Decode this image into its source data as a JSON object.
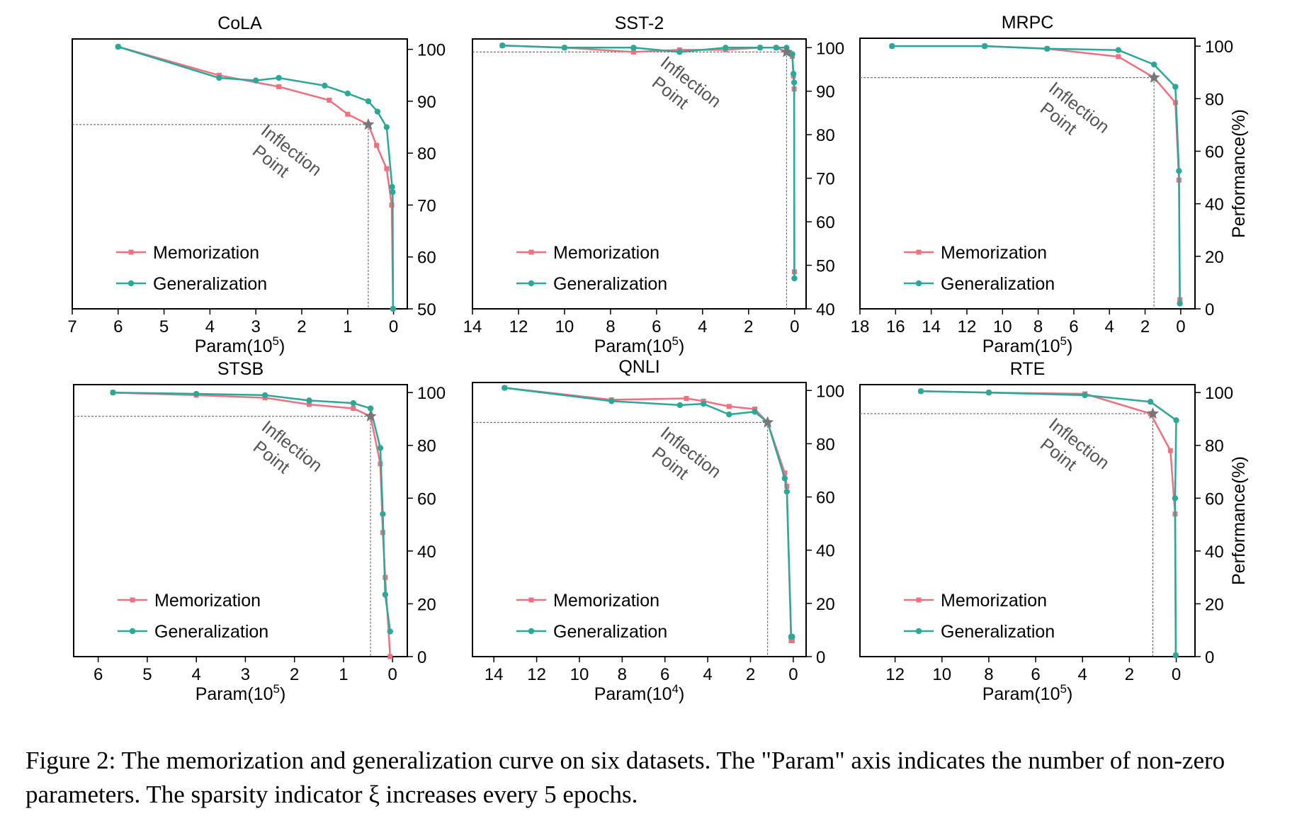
{
  "chart_data": [
    {
      "type": "line",
      "title": "CoLA",
      "xlabel": "Param(10",
      "xlabel_exp": "5",
      "ylabel": "",
      "xlim": [
        7,
        -0.3
      ],
      "ylim": [
        50,
        102
      ],
      "xticks": [
        7,
        6,
        5,
        4,
        3,
        2,
        1,
        0
      ],
      "yticks": [
        50,
        60,
        70,
        80,
        90,
        100
      ],
      "inflection": {
        "x": 0.55,
        "y": 85.5,
        "label": [
          "Inflection",
          "Point"
        ]
      },
      "series": [
        {
          "name": "Memorization",
          "color": "#f07080",
          "marker": "square",
          "x": [
            6.0,
            3.8,
            2.5,
            1.4,
            1.0,
            0.55,
            0.37,
            0.15,
            0.04,
            0.01
          ],
          "y": [
            100.5,
            95.0,
            92.8,
            90.2,
            87.5,
            85.5,
            81.5,
            77.0,
            70.0,
            50.0
          ]
        },
        {
          "name": "Generalization",
          "color": "#2ba898",
          "marker": "circle",
          "x": [
            6.0,
            3.8,
            3.0,
            2.5,
            1.5,
            1.0,
            0.55,
            0.35,
            0.15,
            0.03,
            0.02,
            0.01
          ],
          "y": [
            100.5,
            94.5,
            94.0,
            94.5,
            93.0,
            91.5,
            90.0,
            88.0,
            85.0,
            73.5,
            72.5,
            50.0
          ]
        }
      ]
    },
    {
      "type": "line",
      "title": "SST-2",
      "xlabel": "Param(10",
      "xlabel_exp": "5",
      "ylabel": "",
      "xlim": [
        14,
        -0.5
      ],
      "ylim": [
        40,
        102
      ],
      "xticks": [
        14,
        12,
        10,
        8,
        6,
        4,
        2,
        0
      ],
      "yticks": [
        40,
        50,
        60,
        70,
        80,
        90,
        100
      ],
      "inflection": {
        "x": 0.35,
        "y": 99.0,
        "label": [
          "Inflection",
          "Point"
        ]
      },
      "series": [
        {
          "name": "Memorization",
          "color": "#f07080",
          "marker": "square",
          "x": [
            12.7,
            10.0,
            7.0,
            5.0,
            3.0,
            1.5,
            0.8,
            0.35,
            0.1,
            0.05,
            0.02,
            0.01
          ],
          "y": [
            100.5,
            100.0,
            99.0,
            99.5,
            99.5,
            100.0,
            100.0,
            99.0,
            98.0,
            93.5,
            90.5,
            48.5
          ]
        },
        {
          "name": "Generalization",
          "color": "#2ba898",
          "marker": "circle",
          "x": [
            12.7,
            10.0,
            7.0,
            5.0,
            3.0,
            1.5,
            0.8,
            0.35,
            0.1,
            0.05,
            0.02,
            0.01
          ],
          "y": [
            100.5,
            100.0,
            100.0,
            99.0,
            100.0,
            100.0,
            100.0,
            100.0,
            98.5,
            94.0,
            92.0,
            47.0
          ]
        }
      ]
    },
    {
      "type": "line",
      "title": "MRPC",
      "xlabel": "Param(10",
      "xlabel_exp": "5",
      "ylabel": "Performance(%)",
      "xlim": [
        18,
        -0.8
      ],
      "ylim": [
        0,
        103
      ],
      "xticks": [
        18,
        16,
        14,
        12,
        10,
        8,
        6,
        4,
        2,
        0
      ],
      "yticks": [
        0,
        20,
        40,
        60,
        80,
        100
      ],
      "inflection": {
        "x": 1.5,
        "y": 88.0,
        "label": [
          "Inflection",
          "Point"
        ]
      },
      "series": [
        {
          "name": "Memorization",
          "color": "#f07080",
          "marker": "square",
          "x": [
            16.2,
            11.0,
            7.5,
            3.5,
            1.5,
            0.3,
            0.1,
            0.05
          ],
          "y": [
            100.0,
            100.0,
            99.0,
            96.0,
            88.0,
            78.5,
            49.0,
            3.5
          ]
        },
        {
          "name": "Generalization",
          "color": "#2ba898",
          "marker": "circle",
          "x": [
            16.2,
            11.0,
            7.5,
            3.5,
            1.5,
            0.3,
            0.1,
            0.05
          ],
          "y": [
            100.0,
            100.0,
            99.0,
            98.5,
            93.0,
            84.5,
            52.5,
            2.0
          ]
        }
      ]
    },
    {
      "type": "line",
      "title": "STSB",
      "xlabel": "Param(10",
      "xlabel_exp": "5",
      "ylabel": "",
      "xlim": [
        6.5,
        -0.3
      ],
      "ylim": [
        0,
        103
      ],
      "xticks": [
        6,
        5,
        4,
        3,
        2,
        1,
        0
      ],
      "yticks": [
        0,
        20,
        40,
        60,
        80,
        100
      ],
      "inflection": {
        "x": 0.45,
        "y": 91.0,
        "label": [
          "Inflection",
          "Point"
        ]
      },
      "series": [
        {
          "name": "Memorization",
          "color": "#f07080",
          "marker": "square",
          "x": [
            5.7,
            4.0,
            2.6,
            1.7,
            0.8,
            0.45,
            0.25,
            0.2,
            0.15,
            0.05
          ],
          "y": [
            100.0,
            99.0,
            98.0,
            95.5,
            94.0,
            91.0,
            73.0,
            47.0,
            30.0,
            0.0
          ]
        },
        {
          "name": "Generalization",
          "color": "#2ba898",
          "marker": "circle",
          "x": [
            5.7,
            4.0,
            2.6,
            1.7,
            0.8,
            0.45,
            0.25,
            0.2,
            0.15,
            0.05
          ],
          "y": [
            100.0,
            99.5,
            99.0,
            97.0,
            96.0,
            94.0,
            79.0,
            54.0,
            23.5,
            9.5
          ]
        }
      ]
    },
    {
      "type": "line",
      "title": "QNLI",
      "xlabel": "Param(10",
      "xlabel_exp": "4",
      "ylabel": "",
      "xlim": [
        15,
        -0.6
      ],
      "ylim": [
        0,
        103
      ],
      "xticks": [
        14,
        12,
        10,
        8,
        6,
        4,
        2,
        0
      ],
      "yticks": [
        0,
        20,
        40,
        60,
        80,
        100
      ],
      "inflection": {
        "x": 1.2,
        "y": 88.0,
        "label": [
          "Inflection",
          "Point"
        ]
      },
      "series": [
        {
          "name": "Memorization",
          "color": "#f07080",
          "marker": "square",
          "x": [
            13.5,
            8.5,
            5.0,
            4.2,
            3.0,
            1.8,
            1.2,
            0.4,
            0.3,
            0.1,
            0.05
          ],
          "y": [
            101.0,
            96.5,
            97.0,
            96.0,
            94.0,
            93.0,
            88.0,
            69.0,
            64.0,
            6.0,
            6.0
          ]
        },
        {
          "name": "Generalization",
          "color": "#2ba898",
          "marker": "circle",
          "x": [
            13.5,
            8.5,
            5.3,
            4.2,
            3.0,
            1.8,
            1.2,
            0.4,
            0.3,
            0.1,
            0.05
          ],
          "y": [
            101.0,
            96.0,
            94.5,
            95.0,
            91.0,
            92.0,
            88.0,
            67.0,
            62.0,
            7.5,
            7.5
          ]
        }
      ]
    },
    {
      "type": "line",
      "title": "RTE",
      "xlabel": "Param(10",
      "xlabel_exp": "5",
      "ylabel": "Performance(%)",
      "xlim": [
        13.5,
        -0.8
      ],
      "ylim": [
        0,
        103
      ],
      "xticks": [
        12,
        10,
        8,
        6,
        4,
        2,
        0
      ],
      "yticks": [
        0,
        20,
        40,
        60,
        80,
        100
      ],
      "inflection": {
        "x": 1.0,
        "y": 92.0,
        "label": [
          "Inflection",
          "Point"
        ]
      },
      "series": [
        {
          "name": "Memorization",
          "color": "#f07080",
          "marker": "square",
          "x": [
            10.9,
            8.0,
            3.9,
            1.1,
            0.25,
            0.05,
            0.02
          ],
          "y": [
            100.5,
            100.0,
            99.5,
            92.0,
            78.0,
            54.0,
            0.5
          ]
        },
        {
          "name": "Generalization",
          "color": "#2ba898",
          "marker": "circle",
          "x": [
            10.9,
            8.0,
            3.9,
            1.1,
            0.0,
            0.05,
            0.02
          ],
          "y": [
            100.5,
            100.0,
            99.0,
            96.5,
            89.5,
            60.0,
            0.5
          ]
        }
      ]
    }
  ],
  "caption": "Figure 2: The memorization and generalization curve on six datasets. The \"Param\" axis indicates the number of non-zero parameters. The sparsity indicator ξ increases every 5 epochs."
}
